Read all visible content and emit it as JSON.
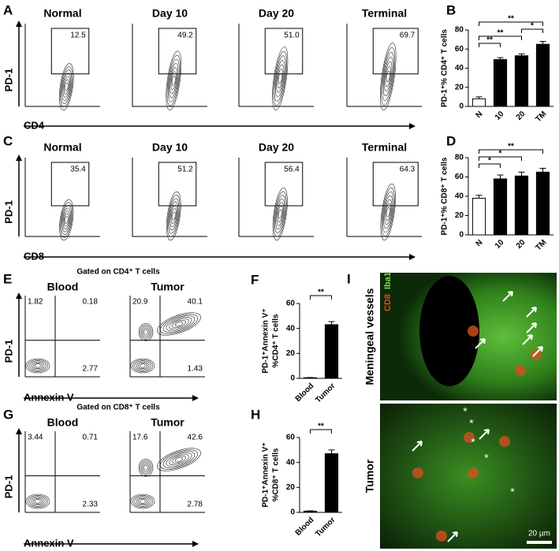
{
  "figure": {
    "panel_labels": [
      "A",
      "B",
      "C",
      "D",
      "E",
      "F",
      "G",
      "H",
      "I"
    ],
    "cd4_timecourse": {
      "titles": [
        "Normal",
        "Day 10",
        "Day 20",
        "Terminal"
      ],
      "gates": [
        "12.5",
        "49.2",
        "51.0",
        "69.7"
      ],
      "y_axis": "PD-1",
      "x_axis": "CD4"
    },
    "cd8_timecourse": {
      "titles": [
        "Normal",
        "Day 10",
        "Day 20",
        "Terminal"
      ],
      "gates": [
        "35.4",
        "51.2",
        "56.4",
        "64.3"
      ],
      "y_axis": "PD-1",
      "x_axis": "CD8"
    },
    "cd4_apoptosis": {
      "header": "Gated on CD4⁺ T cells",
      "titles": [
        "Blood",
        "Tumor"
      ],
      "quadrants": [
        [
          "1.82",
          "0.18",
          "2.77"
        ],
        [
          "20.9",
          "40.1",
          "1.43"
        ]
      ],
      "y_axis": "PD-1",
      "x_axis": "Annexin V"
    },
    "cd8_apoptosis": {
      "header": "Gated on CD8⁺ T cells",
      "titles": [
        "Blood",
        "Tumor"
      ],
      "quadrants": [
        [
          "3.44",
          "0.71",
          "2.33"
        ],
        [
          "17.6",
          "42.6",
          "2.78"
        ]
      ],
      "y_axis": "PD-1",
      "x_axis": "Annexin V"
    },
    "microscopy": {
      "channels": [
        "CD8",
        "Iba1"
      ],
      "titles": [
        "Meningeal vessels",
        "Tumor"
      ],
      "scale_bar": "20 µm",
      "marker": "*"
    }
  },
  "chart_data": [
    {
      "type": "bar",
      "ylabel": [
        "PD-1⁺% CD4⁺ T cells"
      ],
      "categories": [
        "N",
        "10",
        "20",
        "TM"
      ],
      "values": [
        8,
        49,
        53,
        65
      ],
      "errors": [
        2,
        2,
        2,
        3
      ],
      "colors": [
        "#ffffff",
        "#000000",
        "#000000",
        "#000000"
      ],
      "ylim": [
        0,
        80
      ],
      "yticks": [
        0,
        20,
        40,
        60,
        80
      ],
      "significance": [
        "**",
        "**",
        "*",
        "**"
      ]
    },
    {
      "type": "bar",
      "ylabel": [
        "PD-1⁺% CD8⁺ T cells"
      ],
      "categories": [
        "N",
        "10",
        "20",
        "TM"
      ],
      "values": [
        38,
        58,
        61,
        65
      ],
      "errors": [
        3,
        4,
        4,
        4
      ],
      "colors": [
        "#ffffff",
        "#000000",
        "#000000",
        "#000000"
      ],
      "ylim": [
        0,
        80
      ],
      "yticks": [
        0,
        20,
        40,
        60,
        80
      ],
      "significance": [
        "*",
        "*",
        "**"
      ]
    },
    {
      "type": "bar",
      "ylabel": [
        "PD-1⁺Annexin V⁺",
        "%CD4⁺ T cells"
      ],
      "categories": [
        "Blood",
        "Tumor"
      ],
      "values": [
        0.5,
        43
      ],
      "errors": [
        0.2,
        2.5
      ],
      "colors": [
        "#000000",
        "#000000"
      ],
      "ylim": [
        0,
        60
      ],
      "yticks": [
        0,
        20,
        40,
        60
      ],
      "significance": [
        "**"
      ]
    },
    {
      "type": "bar",
      "ylabel": [
        "PD-1⁺Annexin V⁺",
        "%CD8⁺ T cells"
      ],
      "categories": [
        "Blood",
        "Tumor"
      ],
      "values": [
        1,
        47
      ],
      "errors": [
        0.3,
        3
      ],
      "colors": [
        "#000000",
        "#000000"
      ],
      "ylim": [
        0,
        60
      ],
      "yticks": [
        0,
        20,
        40,
        60
      ],
      "significance": [
        "**"
      ]
    }
  ]
}
